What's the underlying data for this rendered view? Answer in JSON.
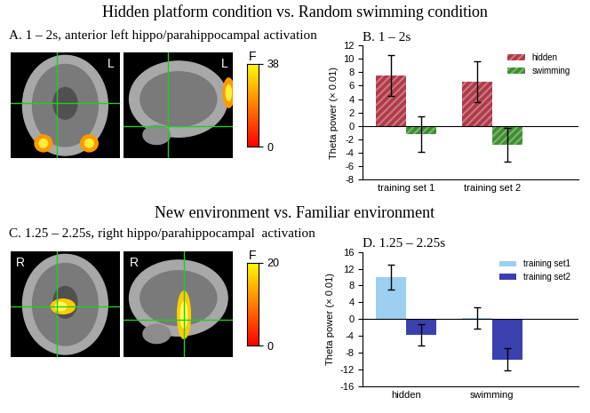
{
  "headings": [
    "Hidden platform condition vs. Random swimming condition",
    "New environment vs. Familiar environment"
  ],
  "image_panels": [
    {
      "title": "A. 1 – 2s, anterior left hippo/parahippocampal activation",
      "slice_labels": [
        "L",
        "L"
      ],
      "colorbar": {
        "label": "F",
        "range": [
          0,
          38
        ],
        "ticks": [
          0,
          38
        ]
      }
    },
    {
      "title": "C. 1.25 – 2.25s, right hippo/parahippocampal  activation",
      "slice_labels": [
        "R",
        "R"
      ],
      "colorbar": {
        "label": "F",
        "range": [
          0,
          20
        ],
        "ticks": [
          0,
          20
        ]
      }
    }
  ],
  "chart_data": [
    {
      "type": "bar",
      "title": "B. 1 – 2s",
      "categories": [
        "training set 1",
        "training set 2"
      ],
      "series": [
        {
          "name": "hidden",
          "color": "#b03a48",
          "values": [
            7.5,
            6.6
          ],
          "errors": [
            3.0,
            3.1
          ]
        },
        {
          "name": "swimming",
          "color": "#3f8f2f",
          "values": [
            -1.2,
            -2.8
          ],
          "errors": [
            2.6,
            2.5
          ]
        }
      ],
      "y_label": "Theta power (× 0.01)",
      "ylim": [
        -8,
        12
      ],
      "yticks": [
        -8,
        -6,
        -4,
        -2,
        0,
        2,
        4,
        6,
        8,
        10,
        12
      ],
      "legend": "upper right"
    },
    {
      "type": "bar",
      "title": "D. 1.25 – 2.25s",
      "categories": [
        "hidden",
        "swimming"
      ],
      "series": [
        {
          "name": "training set1",
          "color": "#9ccff0",
          "values": [
            10.0,
            0.3
          ],
          "errors": [
            3.0,
            2.6
          ]
        },
        {
          "name": "training set2",
          "color": "#3b40b0",
          "values": [
            -3.8,
            -9.6
          ],
          "errors": [
            2.6,
            2.6
          ]
        }
      ],
      "y_label": "Theta power (× 0.01)",
      "ylim": [
        -16,
        16
      ],
      "yticks": [
        -16,
        -12,
        -8,
        -4,
        0,
        4,
        8,
        12,
        16
      ],
      "legend": "upper right"
    }
  ]
}
